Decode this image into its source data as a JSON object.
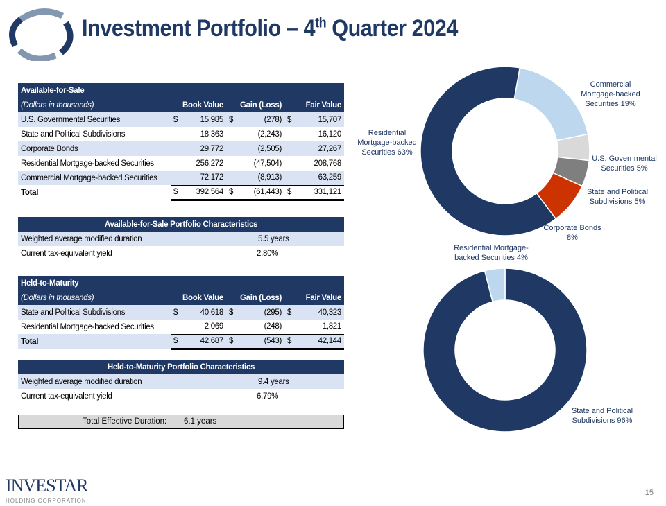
{
  "header": {
    "title_main": "Investment Portfolio – 4",
    "title_sup": "th",
    "title_end": " Quarter 2024"
  },
  "afs": {
    "title": "Available-for-Sale",
    "subtitle": "(Dollars in thousands)",
    "cols": [
      "Book Value",
      "Gain (Loss)",
      "Fair Value"
    ],
    "rows": [
      {
        "label": "U.S. Governmental Securities",
        "book": "15,985",
        "gain": "(278)",
        "fair": "15,707",
        "dollar": true
      },
      {
        "label": "State and Political Subdivisions",
        "book": "18,363",
        "gain": "(2,243)",
        "fair": "16,120",
        "dollar": false
      },
      {
        "label": "Corporate Bonds",
        "book": "29,772",
        "gain": "(2,505)",
        "fair": "27,267",
        "dollar": false
      },
      {
        "label": "Residential Mortgage-backed Securities",
        "book": "256,272",
        "gain": "(47,504)",
        "fair": "208,768",
        "dollar": false
      },
      {
        "label": "Commercial Mortgage-backed Securities",
        "book": "72,172",
        "gain": "(8,913)",
        "fair": "63,259",
        "dollar": false
      }
    ],
    "total": {
      "label": "Total",
      "book": "392,564",
      "gain": "(61,443)",
      "fair": "331,121"
    },
    "dollar_sign": "$"
  },
  "afs_char": {
    "title": "Available-for-Sale Portfolio Characteristics",
    "rows": [
      {
        "label": "Weighted average modified duration",
        "value": "5.5 years"
      },
      {
        "label": "Current tax-equivalent yield",
        "value": "2.80%"
      }
    ]
  },
  "htm": {
    "title": "Held-to-Maturity",
    "subtitle": "(Dollars in thousands)",
    "cols": [
      "Book Value",
      "Gain (Loss)",
      "Fair Value"
    ],
    "rows": [
      {
        "label": "State and Political Subdivisions",
        "book": "40,618",
        "gain": "(295)",
        "fair": "40,323"
      },
      {
        "label": "Residential Mortgage-backed Securities",
        "book": "2,069",
        "gain": "(248)",
        "fair": "1,821"
      }
    ],
    "total": {
      "label": "Total",
      "book": "42,687",
      "gain": "(543)",
      "fair": "42,144"
    }
  },
  "htm_char": {
    "title": "Held-to-Maturity Portfolio Characteristics",
    "rows": [
      {
        "label": "Weighted average modified duration",
        "value": "9.4 years"
      },
      {
        "label": "Current tax-equivalent yield",
        "value": "6.79%"
      }
    ]
  },
  "duration": {
    "label": "Total Effective Duration:",
    "value": "6.1 years"
  },
  "footer": {
    "brand": "INVESTAR",
    "brand_sub": "HOLDING CORPORATION",
    "page": "15"
  },
  "chart_data": [
    {
      "type": "pie",
      "donut": true,
      "categories": [
        "Commercial Mortgage-backed Securities",
        "U.S. Governmental Securities",
        "State and Political Subdivisions",
        "Corporate Bonds",
        "Residential Mortgage-backed Securities"
      ],
      "values": [
        19,
        5,
        5,
        8,
        63
      ],
      "labels": [
        [
          "Commercial",
          "Mortgage-backed",
          "Securities 19%"
        ],
        [
          "U.S. Governmental",
          "Securities 5%"
        ],
        [
          "State and Political",
          "Subdivisions 5%"
        ],
        [
          "Corporate Bonds",
          "8%"
        ],
        [
          "Residential",
          "Mortgage-backed",
          "Securities 63%"
        ]
      ],
      "colors": [
        "#BDD7EE",
        "#D9D9D9",
        "#7F7F7F",
        "#CC3300",
        "#1F3864"
      ]
    },
    {
      "type": "pie",
      "donut": true,
      "categories": [
        "State and Political Subdivisions",
        "Residential Mortgage-backed Securities"
      ],
      "values": [
        96,
        4
      ],
      "labels": [
        [
          "State and Political",
          "Subdivisions 96%"
        ],
        [
          "Residential Mortgage-",
          "backed Securities 4%"
        ]
      ],
      "colors": [
        "#1F3864",
        "#BDD7EE"
      ]
    }
  ]
}
